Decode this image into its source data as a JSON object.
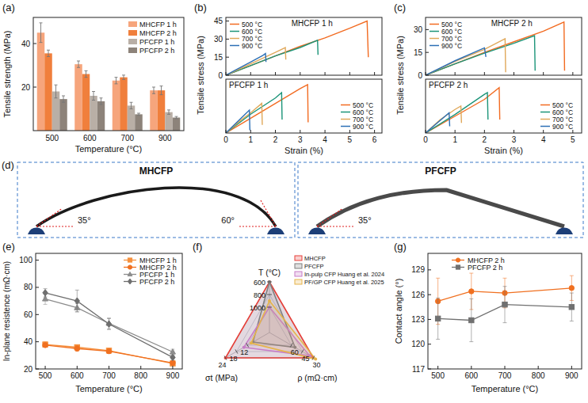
{
  "chart_data": [
    {
      "type": "bar",
      "panel_label": "(a)",
      "x_label": "Temperature (°C)",
      "y_label": "Tensile strength (MPa)",
      "categories": [
        "500",
        "600",
        "700",
        "900"
      ],
      "ylim": [
        0,
        52
      ],
      "yticks": [
        20,
        40
      ],
      "legend": "upper right",
      "series": [
        {
          "name": "MHCFP 1 h",
          "color": "#f6a57c",
          "values": [
            45,
            30.5,
            23,
            18.5
          ],
          "errors": [
            4.5,
            1.5,
            1.5,
            1.5
          ]
        },
        {
          "name": "MHCFP 2 h",
          "color": "#f07f3c",
          "values": [
            35.5,
            26,
            24.5,
            18.5
          ],
          "errors": [
            1.5,
            1.5,
            1,
            2
          ]
        },
        {
          "name": "PFCFP 1 h",
          "color": "#b9afa6",
          "values": [
            18,
            16,
            11.5,
            8.5
          ],
          "errors": [
            3,
            2,
            1.5,
            1
          ]
        },
        {
          "name": "PFCFP 2 h",
          "color": "#8d837a",
          "values": [
            14.5,
            13.5,
            7.5,
            6
          ],
          "errors": [
            1.5,
            1.5,
            0.5,
            0.5
          ]
        }
      ]
    },
    {
      "type": "line",
      "panel_label": "(b)",
      "x_label": "Strain (%)",
      "y_label": "Tensile stress (MPa)",
      "xlim": [
        0,
        6.3
      ],
      "xticks": [
        0,
        1,
        2,
        3,
        4,
        5,
        6
      ],
      "subplots": [
        {
          "title": "MHCFP 1 h",
          "ylim": [
            0,
            48
          ],
          "yticks": [
            0,
            15,
            30,
            45
          ],
          "legend": "upper left",
          "series": [
            {
              "name": "500 °C",
              "color": "#f26b21",
              "x": [
                0,
                1,
                2,
                3,
                4,
                5,
                5.7,
                5.75
              ],
              "values": [
                0,
                8,
                16,
                24,
                31,
                39,
                45,
                15
              ]
            },
            {
              "name": "600 °C",
              "color": "#1b9478",
              "x": [
                0,
                1,
                2,
                3,
                3.7,
                3.72
              ],
              "values": [
                0,
                8,
                16,
                23,
                29,
                17
              ]
            },
            {
              "name": "700 °C",
              "color": "#e0a85a",
              "x": [
                0,
                1,
                2,
                2.4,
                2.42
              ],
              "values": [
                0,
                9.5,
                19,
                23,
                13
              ]
            },
            {
              "name": "900 °C",
              "color": "#2c6fb5",
              "x": [
                0,
                0.5,
                1,
                1.5,
                1.6,
                1.62
              ],
              "values": [
                0,
                5.5,
                11,
                16.5,
                18,
                11
              ]
            }
          ]
        },
        {
          "title": "PFCFP 1 h",
          "ylim": [
            0,
            20
          ],
          "yticks": [],
          "legend": "lower right",
          "series": [
            {
              "name": "500 °C",
              "color": "#f26b21",
              "x": [
                0,
                1,
                2,
                3,
                3.3,
                3.32
              ],
              "values": [
                0,
                5.5,
                11,
                16.5,
                18,
                4
              ]
            },
            {
              "name": "600 °C",
              "color": "#1b9478",
              "x": [
                0,
                1,
                2,
                2.25,
                2.27
              ],
              "values": [
                0,
                7,
                13,
                15,
                5
              ]
            },
            {
              "name": "700 °C",
              "color": "#e0a85a",
              "x": [
                0,
                0.5,
                1,
                1.45,
                1.47
              ],
              "values": [
                0,
                4,
                7.5,
                11,
                3
              ]
            },
            {
              "name": "900 °C",
              "color": "#2c6fb5",
              "x": [
                0,
                0.5,
                0.95,
                0.97
              ],
              "values": [
                0,
                4.5,
                8.5,
                1
              ]
            }
          ]
        }
      ]
    },
    {
      "type": "line",
      "panel_label": "(c)",
      "x_label": "Strain (%)",
      "y_label": "Tensile stress (MPa)",
      "xlim": [
        0,
        5.3
      ],
      "xticks": [
        0,
        1,
        2,
        3,
        4,
        5
      ],
      "subplots": [
        {
          "title": "MHCFP 2 h",
          "ylim": [
            0,
            38
          ],
          "yticks": [
            0,
            15,
            30
          ],
          "legend": "upper left",
          "series": [
            {
              "name": "500 °C",
              "color": "#f26b21",
              "x": [
                0,
                1,
                2,
                3,
                4,
                4.7,
                4.72
              ],
              "values": [
                0,
                7.5,
                15,
                22,
                29,
                35,
                3
              ]
            },
            {
              "name": "600 °C",
              "color": "#1b9478",
              "x": [
                0,
                1,
                2,
                3,
                3.7,
                3.72
              ],
              "values": [
                0,
                7.5,
                14.5,
                21,
                26,
                3
              ]
            },
            {
              "name": "700 °C",
              "color": "#e0a85a",
              "x": [
                0,
                1,
                2,
                2.7,
                2.72
              ],
              "values": [
                0,
                9,
                17,
                24,
                2
              ]
            },
            {
              "name": "900 °C",
              "color": "#2c6fb5",
              "x": [
                0,
                1,
                2,
                2.05
              ],
              "values": [
                0,
                9.5,
                18,
                12
              ]
            }
          ]
        },
        {
          "title": "PFCFP 2 h",
          "ylim": [
            0,
            16
          ],
          "yticks": [],
          "legend": "lower right",
          "series": [
            {
              "name": "500 °C",
              "color": "#f26b21",
              "x": [
                0,
                1,
                2,
                2.5,
                2.52
              ],
              "values": [
                0,
                5,
                10,
                13.5,
                4
              ]
            },
            {
              "name": "600 °C",
              "color": "#1b9478",
              "x": [
                0,
                1,
                2,
                2.1,
                2.12
              ],
              "values": [
                0,
                5.5,
                11.5,
                12,
                4
              ]
            },
            {
              "name": "700 °C",
              "color": "#e0a85a",
              "x": [
                0,
                0.5,
                1,
                1.2,
                1.22
              ],
              "values": [
                0,
                4,
                7,
                8,
                3
              ]
            },
            {
              "name": "900 °C",
              "color": "#2c6fb5",
              "x": [
                0,
                0.4,
                0.8,
                0.82
              ],
              "values": [
                0,
                3,
                6,
                2
              ]
            }
          ]
        }
      ]
    },
    {
      "type": "line",
      "panel_label": "(e)",
      "x_label": "Temperature (°C)",
      "y_label": "In-plane resistence (mΩ·cm)",
      "x": [
        500,
        600,
        700,
        900
      ],
      "xlim": [
        470,
        930
      ],
      "xticks": [
        500,
        600,
        700,
        800,
        900
      ],
      "ylim": [
        20,
        105
      ],
      "yticks": [
        20,
        40,
        60,
        80,
        100
      ],
      "legend": "upper right",
      "series": [
        {
          "name": "MHCFP 1 h",
          "color": "#f5913e",
          "marker": "square",
          "values": [
            38,
            36,
            33.5,
            24
          ],
          "errors": [
            2,
            1.5,
            1,
            1
          ]
        },
        {
          "name": "MHCFP 2 h",
          "color": "#f07020",
          "marker": "circle",
          "values": [
            37.5,
            35,
            33,
            24.5
          ],
          "errors": [
            1.5,
            2,
            1.5,
            1
          ]
        },
        {
          "name": "PFCFP 1 h",
          "color": "#8c8c8c",
          "marker": "triangle",
          "values": [
            71.5,
            65,
            53.5,
            32.5
          ],
          "errors": [
            4,
            3,
            4,
            2
          ]
        },
        {
          "name": "PFCFP 2 h",
          "color": "#6e6e6e",
          "marker": "diamond",
          "values": [
            76,
            70,
            53,
            28.5
          ],
          "errors": [
            3,
            8,
            4,
            1.5
          ]
        }
      ]
    },
    {
      "type": "radar",
      "panel_label": "(f)",
      "legend": "upper right",
      "axes": [
        {
          "label": "T (°C)",
          "lim": [
            1400,
            600
          ],
          "ticks": [
            600,
            800,
            1000
          ]
        },
        {
          "label": "ρ (mΩ·cm)",
          "lim": [
            90,
            30
          ],
          "ticks": [
            30,
            45,
            60
          ]
        },
        {
          "label": "σt (MPa)",
          "lim": [
            0,
            24
          ],
          "ticks": [
            12,
            18,
            24
          ]
        }
      ],
      "series": [
        {
          "name": "MHCFP",
          "color": "#e8413a",
          "values": [
            600,
            30,
            24
          ]
        },
        {
          "name": "PFCFP",
          "color": "#7f7f7f",
          "values": [
            600,
            55,
            9
          ]
        },
        {
          "name": "In-pulp CFP Huang et al. 2024",
          "color": "#c77dc7",
          "values": [
            1000,
            35,
            14
          ]
        },
        {
          "name": "PF/GP CFP Huang et al. 2025",
          "color": "#e6b44a",
          "values": [
            900,
            27,
            10
          ]
        }
      ]
    },
    {
      "type": "line",
      "panel_label": "(g)",
      "x_label": "Temperature (°C)",
      "y_label": "Contact angle (°)",
      "x": [
        500,
        600,
        700,
        900
      ],
      "xlim": [
        470,
        930
      ],
      "xticks": [
        500,
        600,
        700,
        800,
        900
      ],
      "ylim": [
        117,
        131
      ],
      "yticks": [
        117,
        120,
        123,
        126,
        129
      ],
      "legend": "upper left",
      "series": [
        {
          "name": "MHCFP 2 h",
          "color": "#f07020",
          "marker": "circle",
          "values": [
            125.2,
            126.4,
            126.2,
            126.8
          ],
          "errors": [
            2.8,
            2.2,
            1.8,
            1.5
          ]
        },
        {
          "name": "PFCFP 2 h",
          "color": "#707070",
          "marker": "square",
          "values": [
            123.1,
            122.9,
            124.8,
            124.5
          ],
          "errors": [
            2.5,
            2.6,
            2.2,
            1.7
          ]
        }
      ]
    }
  ],
  "photo_panel": {
    "panel_label": "(d)",
    "groups": [
      {
        "title": "MHCFP",
        "angles": [
          {
            "value": 35,
            "label": "35°"
          },
          {
            "value": 60,
            "label": "60°"
          }
        ]
      },
      {
        "title": "PFCFP",
        "angles": [
          {
            "value": 35,
            "label": "35°"
          }
        ]
      }
    ]
  }
}
